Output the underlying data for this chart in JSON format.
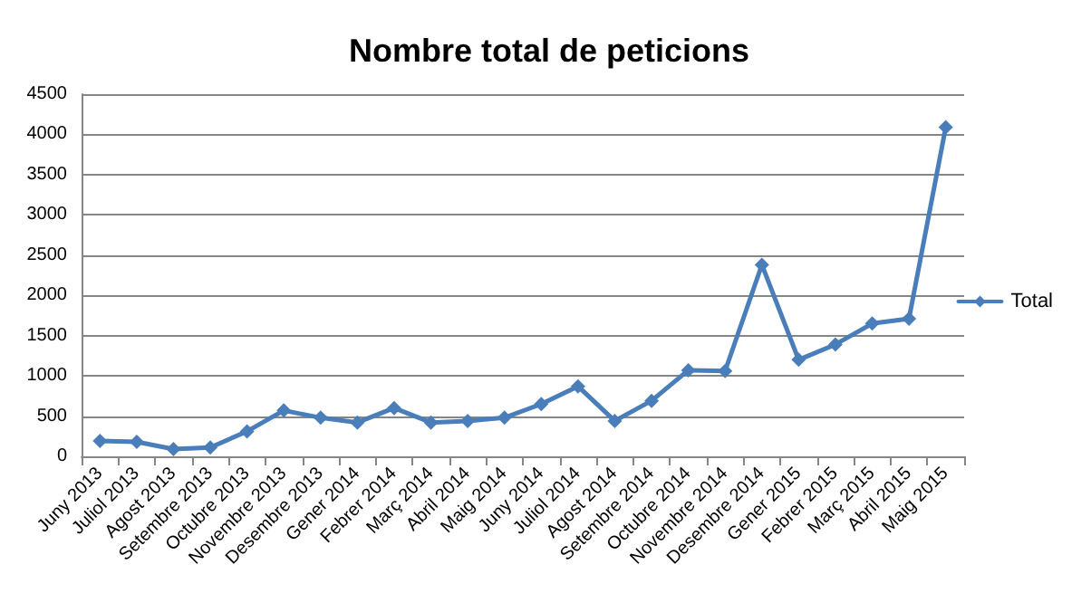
{
  "chart_data": {
    "type": "line",
    "title": "Nombre total de peticions",
    "categories": [
      "Juny 2013",
      "Juliol 2013",
      "Agost 2013",
      "Setembre 2013",
      "Octubre 2013",
      "Novembre 2013",
      "Desembre 2013",
      "Gener 2014",
      "Febrer 2014",
      "Març 2014",
      "Abril 2014",
      "Maig 2014",
      "Juny 2014",
      "Juliol 2014",
      "Agost 2014",
      "Setembre 2014",
      "Octubre 2014",
      "Novembre 2014",
      "Desembre 2014",
      "Gener 2015",
      "Febrer 2015",
      "Març 2015",
      "Abril 2015",
      "Maig 2015"
    ],
    "series": [
      {
        "name": "Total",
        "color": "#4a7ebb",
        "values": [
          190,
          180,
          90,
          110,
          310,
          570,
          480,
          420,
          600,
          420,
          440,
          480,
          650,
          870,
          440,
          690,
          1070,
          1060,
          2380,
          1200,
          1390,
          1650,
          1710,
          4090
        ]
      }
    ],
    "ylim": [
      0,
      4500
    ],
    "yticks": [
      0,
      500,
      1000,
      1500,
      2000,
      2500,
      3000,
      3500,
      4000,
      4500
    ],
    "grid": "y",
    "legend": "right",
    "marker": "diamond",
    "line_style": "solid"
  }
}
